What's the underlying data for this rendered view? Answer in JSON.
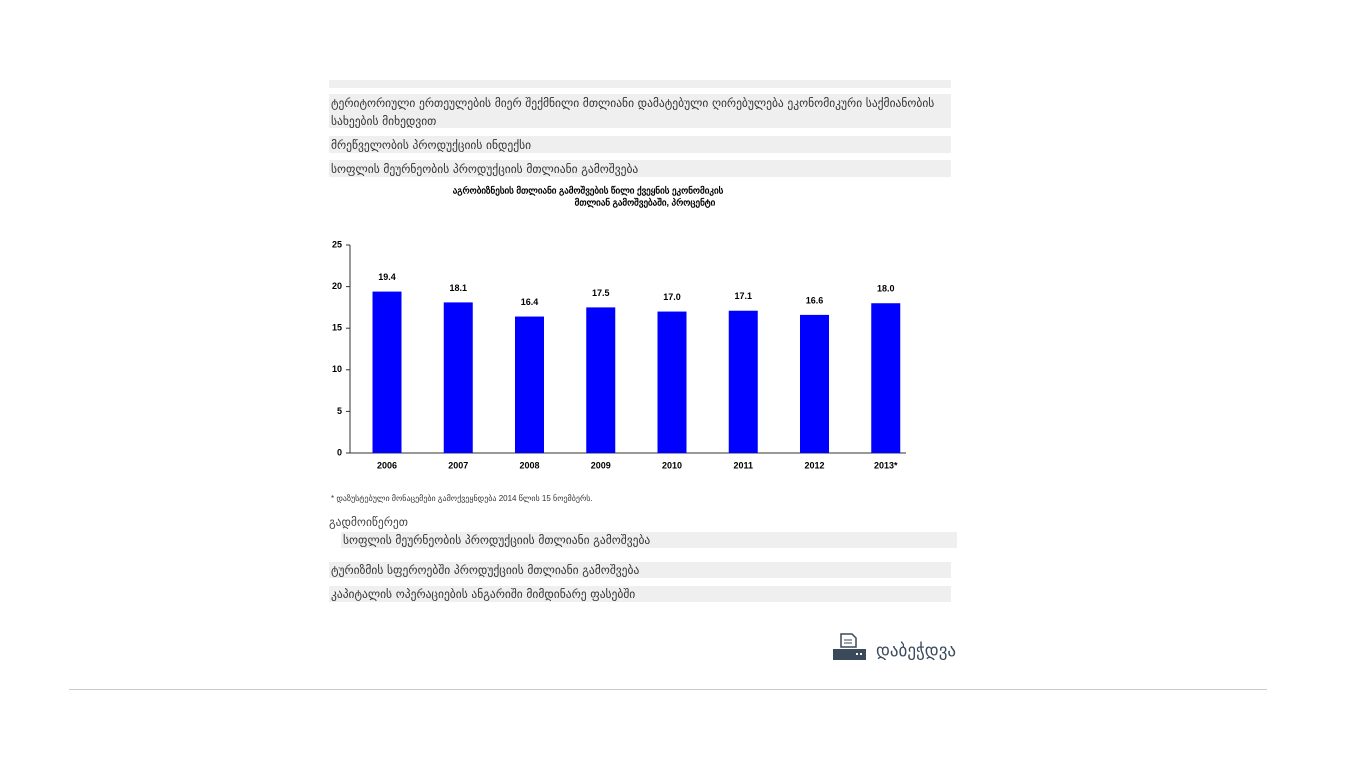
{
  "links_top": [
    "ტერიტორიული ერთეულების მიერ შექმნილი მთლიანი დამატებული ღირებულება ეკონომიკური საქმიანობის სახეების მიხედვით",
    "მრეწველობის პროდუქციის ინდექსი",
    "სოფლის მეურნეობის პროდუქციის მთლიანი გამოშვება"
  ],
  "chart_data": {
    "type": "bar",
    "title": [
      "აგრობიზნესის მთლიანი გამოშვების წილი ქვეყნის ეკონომიკის",
      "მთლიან გამოშვებაში, პროცენტი"
    ],
    "categories": [
      "2006",
      "2007",
      "2008",
      "2009",
      "2010",
      "2011",
      "2012",
      "2013*"
    ],
    "values": [
      19.4,
      18.1,
      16.4,
      17.5,
      17.0,
      17.1,
      16.6,
      18.0
    ],
    "value_labels": [
      "19.4",
      "18.1",
      "16.4",
      "17.5",
      "17.0",
      "17.1",
      "16.6",
      "18.0"
    ],
    "color": "#0000ff",
    "ylim": [
      0,
      25
    ],
    "yticks": [
      0,
      5,
      10,
      15,
      20,
      25
    ],
    "note": "* დაზუსტებული მონაცემები გამოქვეყნდება 2014 წლის 15 ნოემბერს."
  },
  "download": {
    "label": "გადმოიწერეთ",
    "file": "სოფლის მეურნეობის პროდუქციის მთლიანი გამოშვება"
  },
  "links_bottom": [
    "ტურიზმის სფეროებში პროდუქციის მთლიანი გამოშვება",
    "კაპიტალის ოპერაციების ანგარიში მიმდინარე ფასებში"
  ],
  "print": "დაბეჭდვა"
}
